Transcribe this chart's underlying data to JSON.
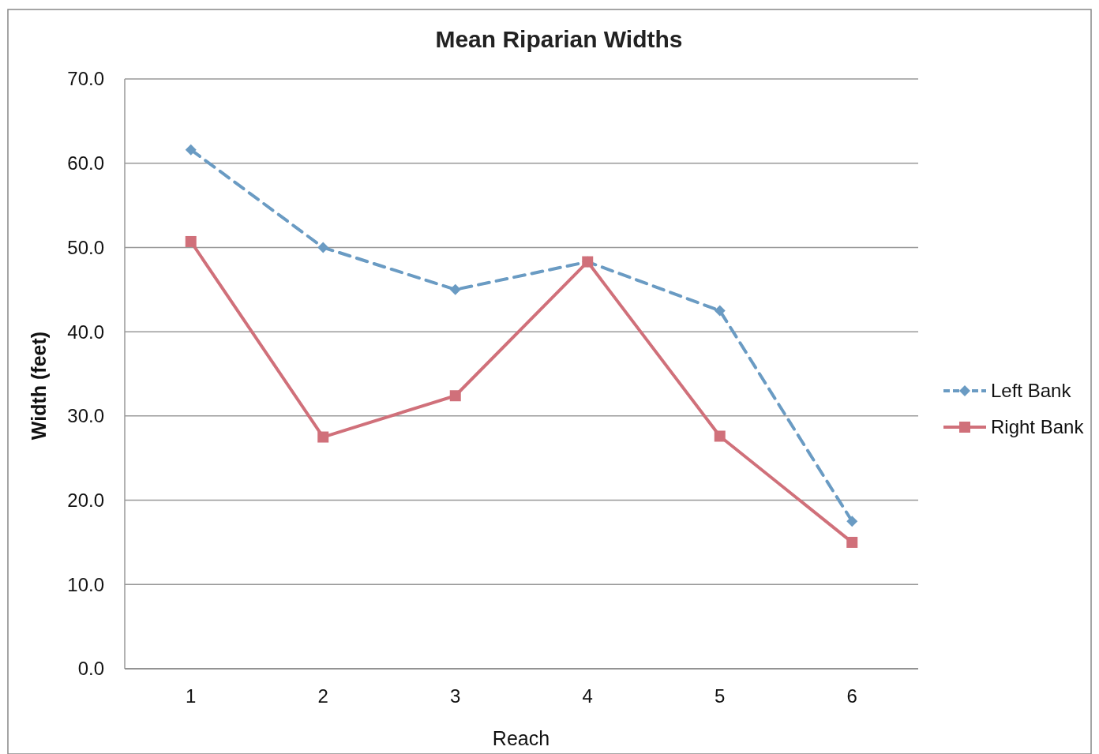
{
  "chart_data": {
    "type": "line",
    "title": "Mean Riparian Widths",
    "xlabel": "Reach",
    "ylabel": "Width (feet)",
    "categories": [
      "1",
      "2",
      "3",
      "4",
      "5",
      "6"
    ],
    "series": [
      {
        "name": "Left Bank",
        "color": "#6a9bc3",
        "values": [
          61.6,
          50.0,
          45.0,
          48.3,
          42.5,
          17.5
        ],
        "marker": "diamond",
        "line_style": "dashed"
      },
      {
        "name": "Right Bank",
        "color": "#d0707a",
        "values": [
          50.7,
          27.5,
          32.4,
          48.3,
          27.6,
          15.0
        ],
        "marker": "square",
        "line_style": "solid"
      }
    ],
    "ylim": [
      0,
      70
    ],
    "yticks": [
      {
        "value": 0,
        "label": "0.0"
      },
      {
        "value": 10,
        "label": "10.0"
      },
      {
        "value": 20,
        "label": "20.0"
      },
      {
        "value": 30,
        "label": "30.0"
      },
      {
        "value": 40,
        "label": "40.0"
      },
      {
        "value": 50,
        "label": "50.0"
      },
      {
        "value": 60,
        "label": "60.0"
      },
      {
        "value": 70,
        "label": "70.0"
      }
    ],
    "grid": "y",
    "legend": "right"
  }
}
